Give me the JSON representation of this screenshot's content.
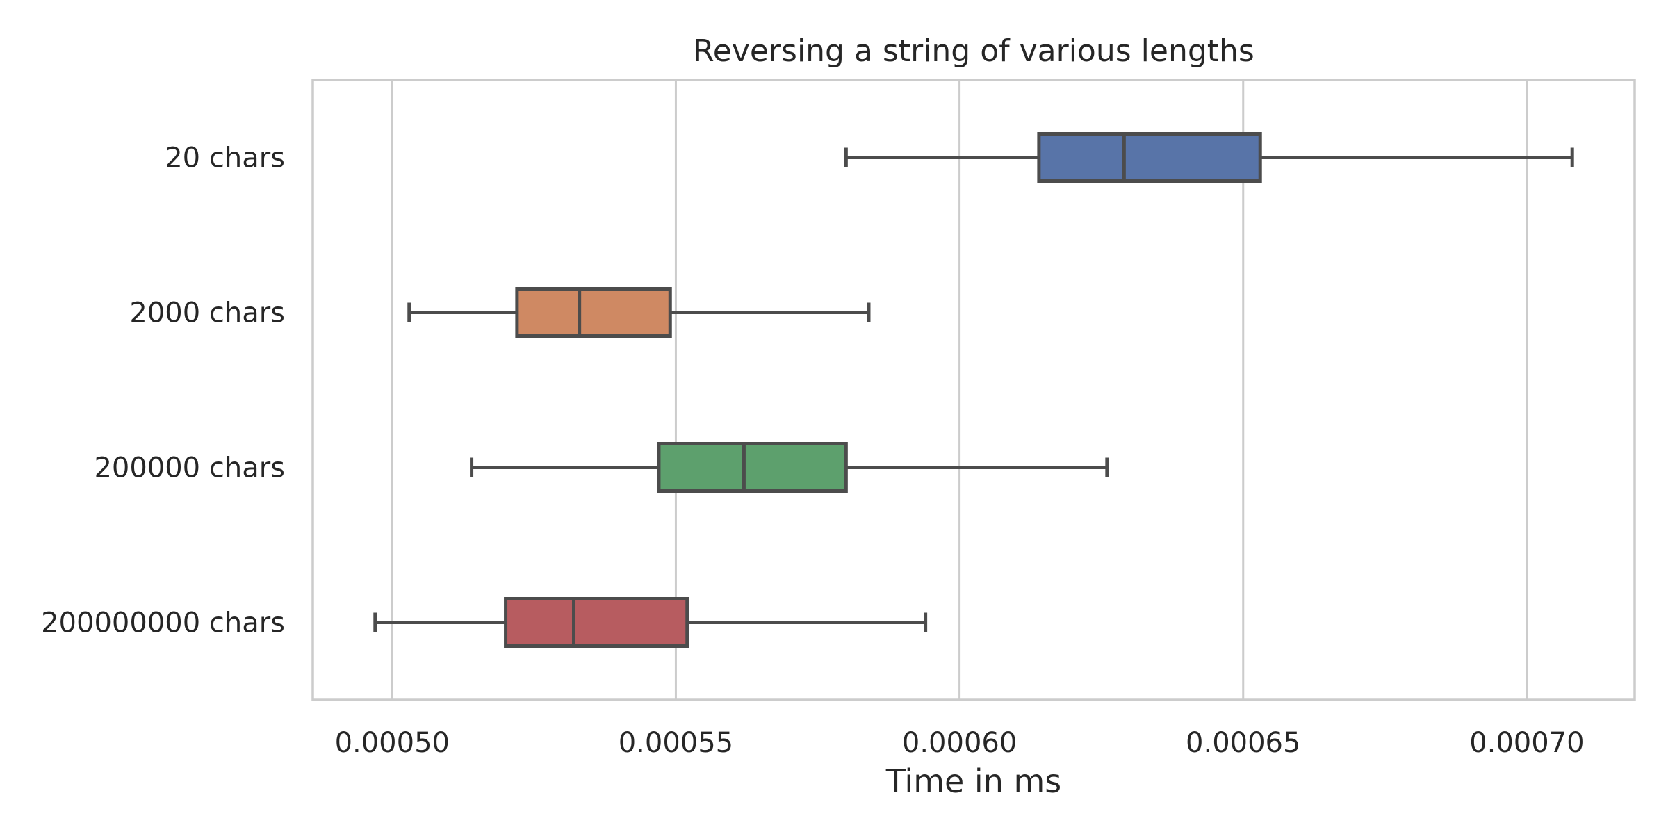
{
  "chart_data": {
    "type": "boxplot",
    "orientation": "horizontal",
    "title": "Reversing a string of various lengths",
    "xlabel": "Time in ms",
    "ylabel": "",
    "xlim": [
      0.000486,
      0.000719
    ],
    "xticks": [
      0.0005,
      0.00055,
      0.0006,
      0.00065,
      0.0007
    ],
    "xtick_labels": [
      "0.00050",
      "0.00055",
      "0.00060",
      "0.00065",
      "0.00070"
    ],
    "grid": "vertical",
    "box_edge_color": "#4c4c4c",
    "categories": [
      "20 chars",
      "2000 chars",
      "200000 chars",
      "200000000 chars"
    ],
    "boxes": [
      {
        "category": "20 chars",
        "color": "#5874a8",
        "whislo": 0.00058,
        "q1": 0.000614,
        "median": 0.000629,
        "q3": 0.000653,
        "whishi": 0.000708
      },
      {
        "category": "2000 chars",
        "color": "#cf8963",
        "whislo": 0.000503,
        "q1": 0.000522,
        "median": 0.000533,
        "q3": 0.000549,
        "whishi": 0.000584
      },
      {
        "category": "200000 chars",
        "color": "#5da06d",
        "whislo": 0.000514,
        "q1": 0.000547,
        "median": 0.000562,
        "q3": 0.00058,
        "whishi": 0.000626
      },
      {
        "category": "200000000 chars",
        "color": "#b75c60",
        "whislo": 0.000497,
        "q1": 0.00052,
        "median": 0.000532,
        "q3": 0.000552,
        "whishi": 0.000594
      }
    ]
  }
}
